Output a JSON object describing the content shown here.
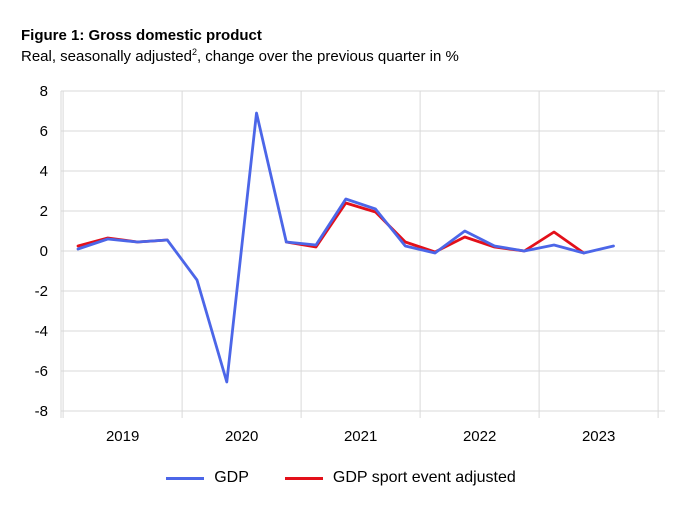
{
  "chart_data": {
    "type": "line",
    "title": "Figure 1: Gross domestic product",
    "subtitle_main": "Real, seasonally adjusted",
    "subtitle_footnote": "2",
    "subtitle_rest": ", change over the previous quarter in %",
    "ylim": [
      -8,
      8
    ],
    "yticks": [
      "8",
      "6",
      "4",
      "2",
      "0",
      "-2",
      "-4",
      "-6",
      "-8"
    ],
    "year_labels": [
      "2019",
      "2020",
      "2021",
      "2022",
      "2023"
    ],
    "quarters": [
      "2019Q1",
      "2019Q2",
      "2019Q3",
      "2019Q4",
      "2020Q1",
      "2020Q2",
      "2020Q3",
      "2020Q4",
      "2021Q1",
      "2021Q2",
      "2021Q3",
      "2021Q4",
      "2022Q1",
      "2022Q2",
      "2022Q3",
      "2022Q4",
      "2023Q1",
      "2023Q2",
      "2023Q3",
      "2023Q4"
    ],
    "series": [
      {
        "name": "GDP sport event adjusted",
        "color": "#e3101a",
        "values": [
          0.25,
          0.65,
          0.45,
          0.55,
          null,
          null,
          null,
          0.45,
          0.2,
          2.4,
          1.95,
          0.45,
          -0.05,
          0.7,
          0.2,
          0.0,
          0.95,
          -0.1,
          null,
          null
        ]
      },
      {
        "name": "GDP",
        "color": "#4c66e8",
        "values": [
          0.1,
          0.6,
          0.45,
          0.55,
          -1.45,
          -6.55,
          6.9,
          0.45,
          0.3,
          2.6,
          2.1,
          0.25,
          -0.1,
          1.0,
          0.25,
          0.0,
          0.3,
          -0.1,
          0.25,
          null
        ]
      }
    ],
    "legend": [
      {
        "label": "GDP",
        "color": "#4c66e8"
      },
      {
        "label": "GDP sport event adjusted",
        "color": "#e3101a"
      }
    ]
  }
}
